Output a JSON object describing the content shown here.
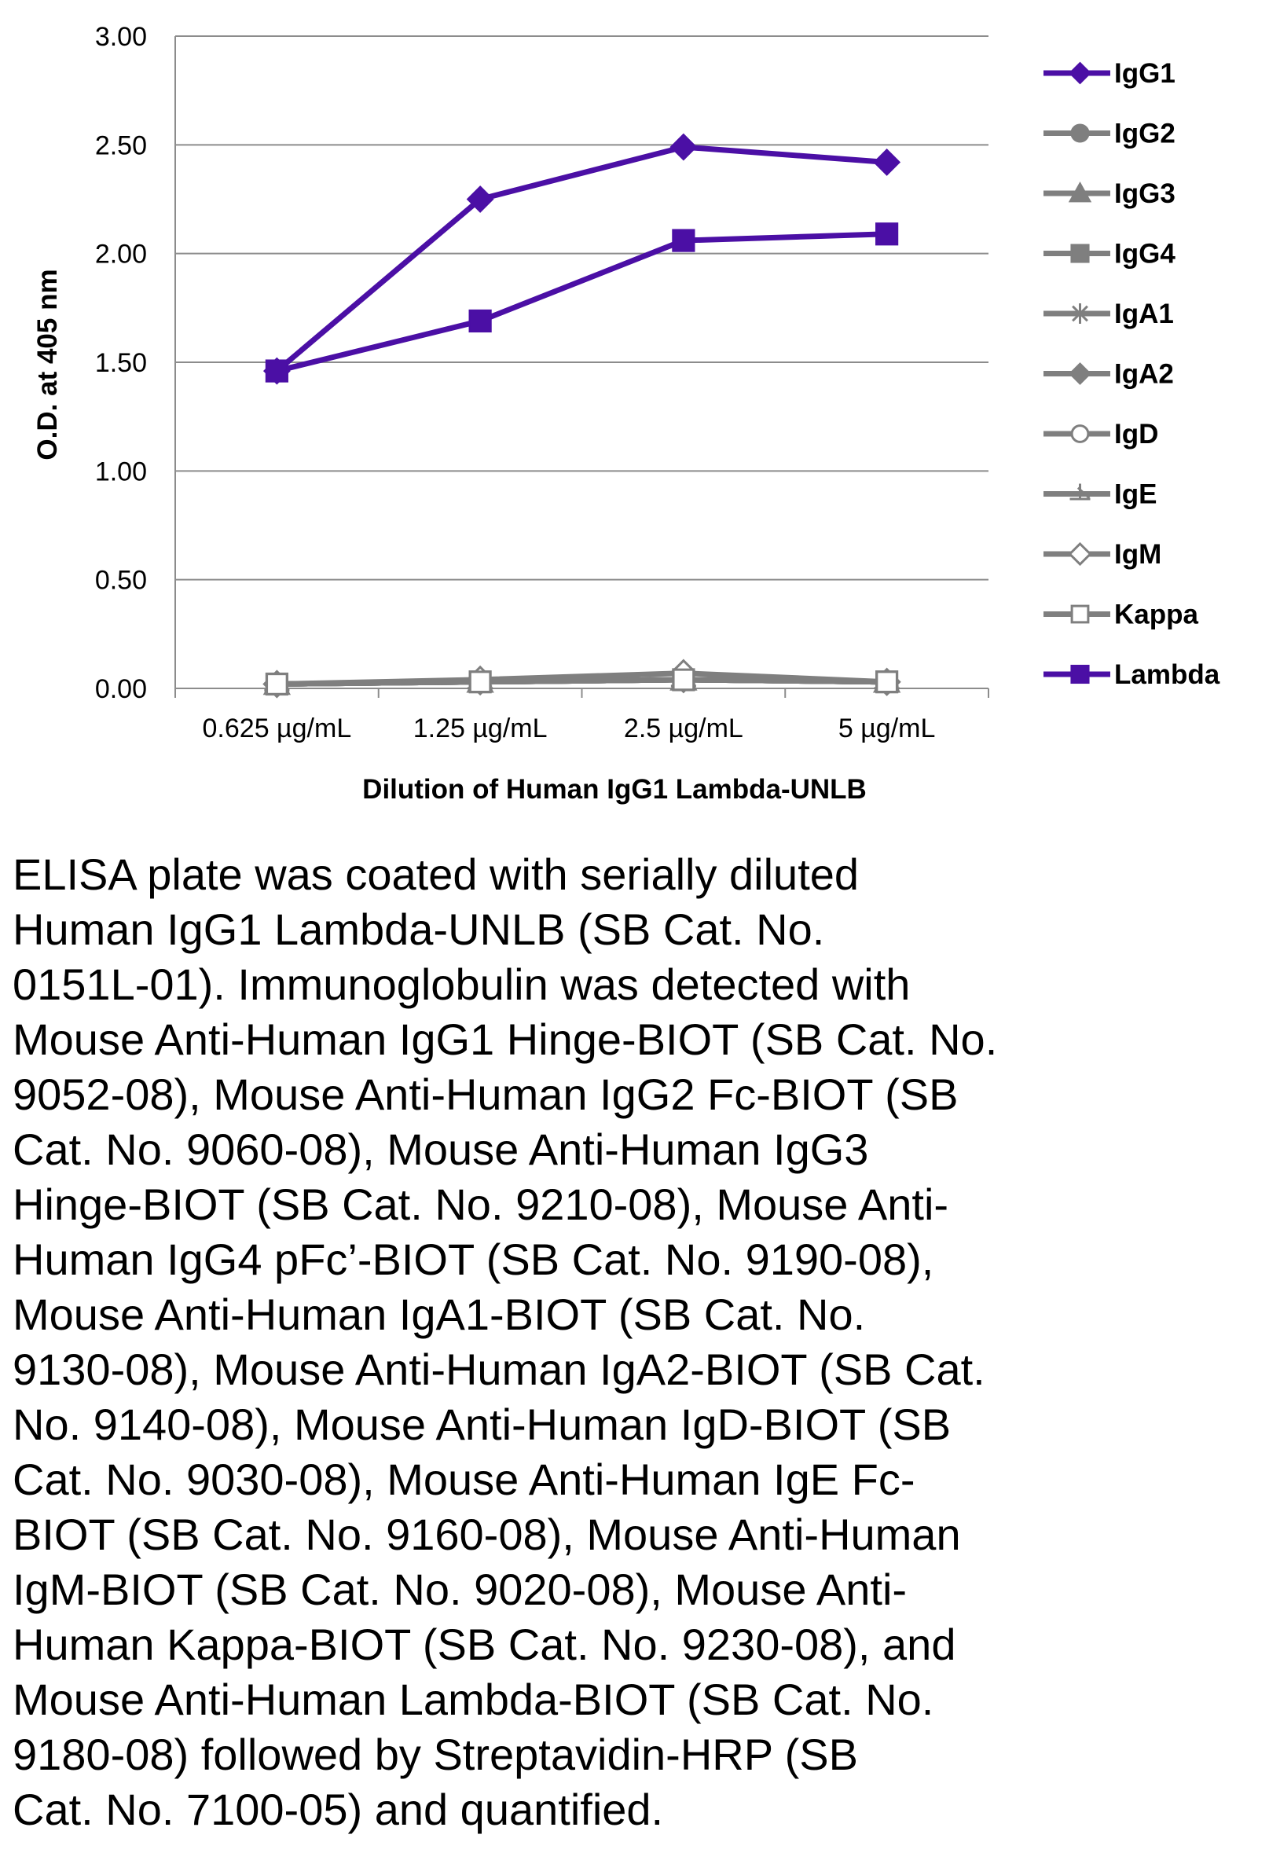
{
  "chart_data": {
    "type": "line",
    "title": "",
    "xlabel": "Dilution of Human IgG1 Lambda-UNLB",
    "ylabel": "O.D. at 405 nm",
    "categories": [
      "0.625 µg/mL",
      "1.25 µg/mL",
      "2.5 µg/mL",
      "5 µg/mL"
    ],
    "ylim": [
      0,
      3
    ],
    "yticks": [
      "0.00",
      "0.50",
      "1.00",
      "1.50",
      "2.00",
      "2.50",
      "3.00"
    ],
    "grid": true,
    "legend_position": "right",
    "series": [
      {
        "name": "IgG1",
        "values": [
          1.46,
          2.25,
          2.49,
          2.42
        ],
        "color": "#4b0fa5",
        "marker": "diamond"
      },
      {
        "name": "IgG2",
        "values": [
          0.02,
          0.03,
          0.04,
          0.03
        ],
        "color": "#7f7f7f",
        "marker": "circle"
      },
      {
        "name": "IgG3",
        "values": [
          0.02,
          0.03,
          0.04,
          0.03
        ],
        "color": "#7f7f7f",
        "marker": "triangle"
      },
      {
        "name": "IgG4",
        "values": [
          0.02,
          0.03,
          0.04,
          0.03
        ],
        "color": "#7f7f7f",
        "marker": "square"
      },
      {
        "name": "IgA1",
        "values": [
          0.02,
          0.03,
          0.04,
          0.03
        ],
        "color": "#7f7f7f",
        "marker": "star"
      },
      {
        "name": "IgA2",
        "values": [
          0.02,
          0.03,
          0.04,
          0.03
        ],
        "color": "#7f7f7f",
        "marker": "diamond"
      },
      {
        "name": "IgD",
        "values": [
          0.02,
          0.03,
          0.04,
          0.03
        ],
        "color": "#7f7f7f",
        "marker": "open-circle"
      },
      {
        "name": "IgE",
        "values": [
          0.02,
          0.03,
          0.04,
          0.03
        ],
        "color": "#7f7f7f",
        "marker": "half-triangle"
      },
      {
        "name": "IgM",
        "values": [
          0.02,
          0.04,
          0.07,
          0.03
        ],
        "color": "#7f7f7f",
        "marker": "open-diamond"
      },
      {
        "name": "Kappa",
        "values": [
          0.02,
          0.03,
          0.04,
          0.03
        ],
        "color": "#7f7f7f",
        "marker": "open-square"
      },
      {
        "name": "Lambda",
        "values": [
          1.46,
          1.69,
          2.06,
          2.09
        ],
        "color": "#4b0fa5",
        "marker": "square"
      }
    ]
  },
  "caption": "ELISA plate was coated with serially diluted\nHuman IgG1 Lambda-UNLB (SB Cat. No.\n0151L-01).  Immunoglobulin was detected with\nMouse Anti-Human IgG1 Hinge-BIOT (SB Cat. No.\n9052-08), Mouse Anti-Human IgG2 Fc-BIOT (SB\nCat. No. 9060-08), Mouse Anti-Human IgG3\nHinge-BIOT (SB Cat. No. 9210-08), Mouse Anti-\nHuman IgG4 pFc’-BIOT (SB Cat. No. 9190-08),\nMouse Anti-Human IgA1-BIOT (SB Cat. No.\n9130-08), Mouse Anti-Human IgA2-BIOT (SB Cat.\nNo. 9140-08),  Mouse Anti-Human IgD-BIOT (SB\nCat. No. 9030-08), Mouse Anti-Human IgE Fc-\nBIOT (SB Cat. No. 9160-08), Mouse Anti-Human\nIgM-BIOT (SB Cat. No. 9020-08), Mouse Anti-\nHuman Kappa-BIOT (SB Cat. No. 9230-08), and\nMouse Anti-Human Lambda-BIOT (SB Cat. No.\n9180-08) followed by Streptavidin-HRP (SB\nCat. No. 7100-05) and quantified."
}
